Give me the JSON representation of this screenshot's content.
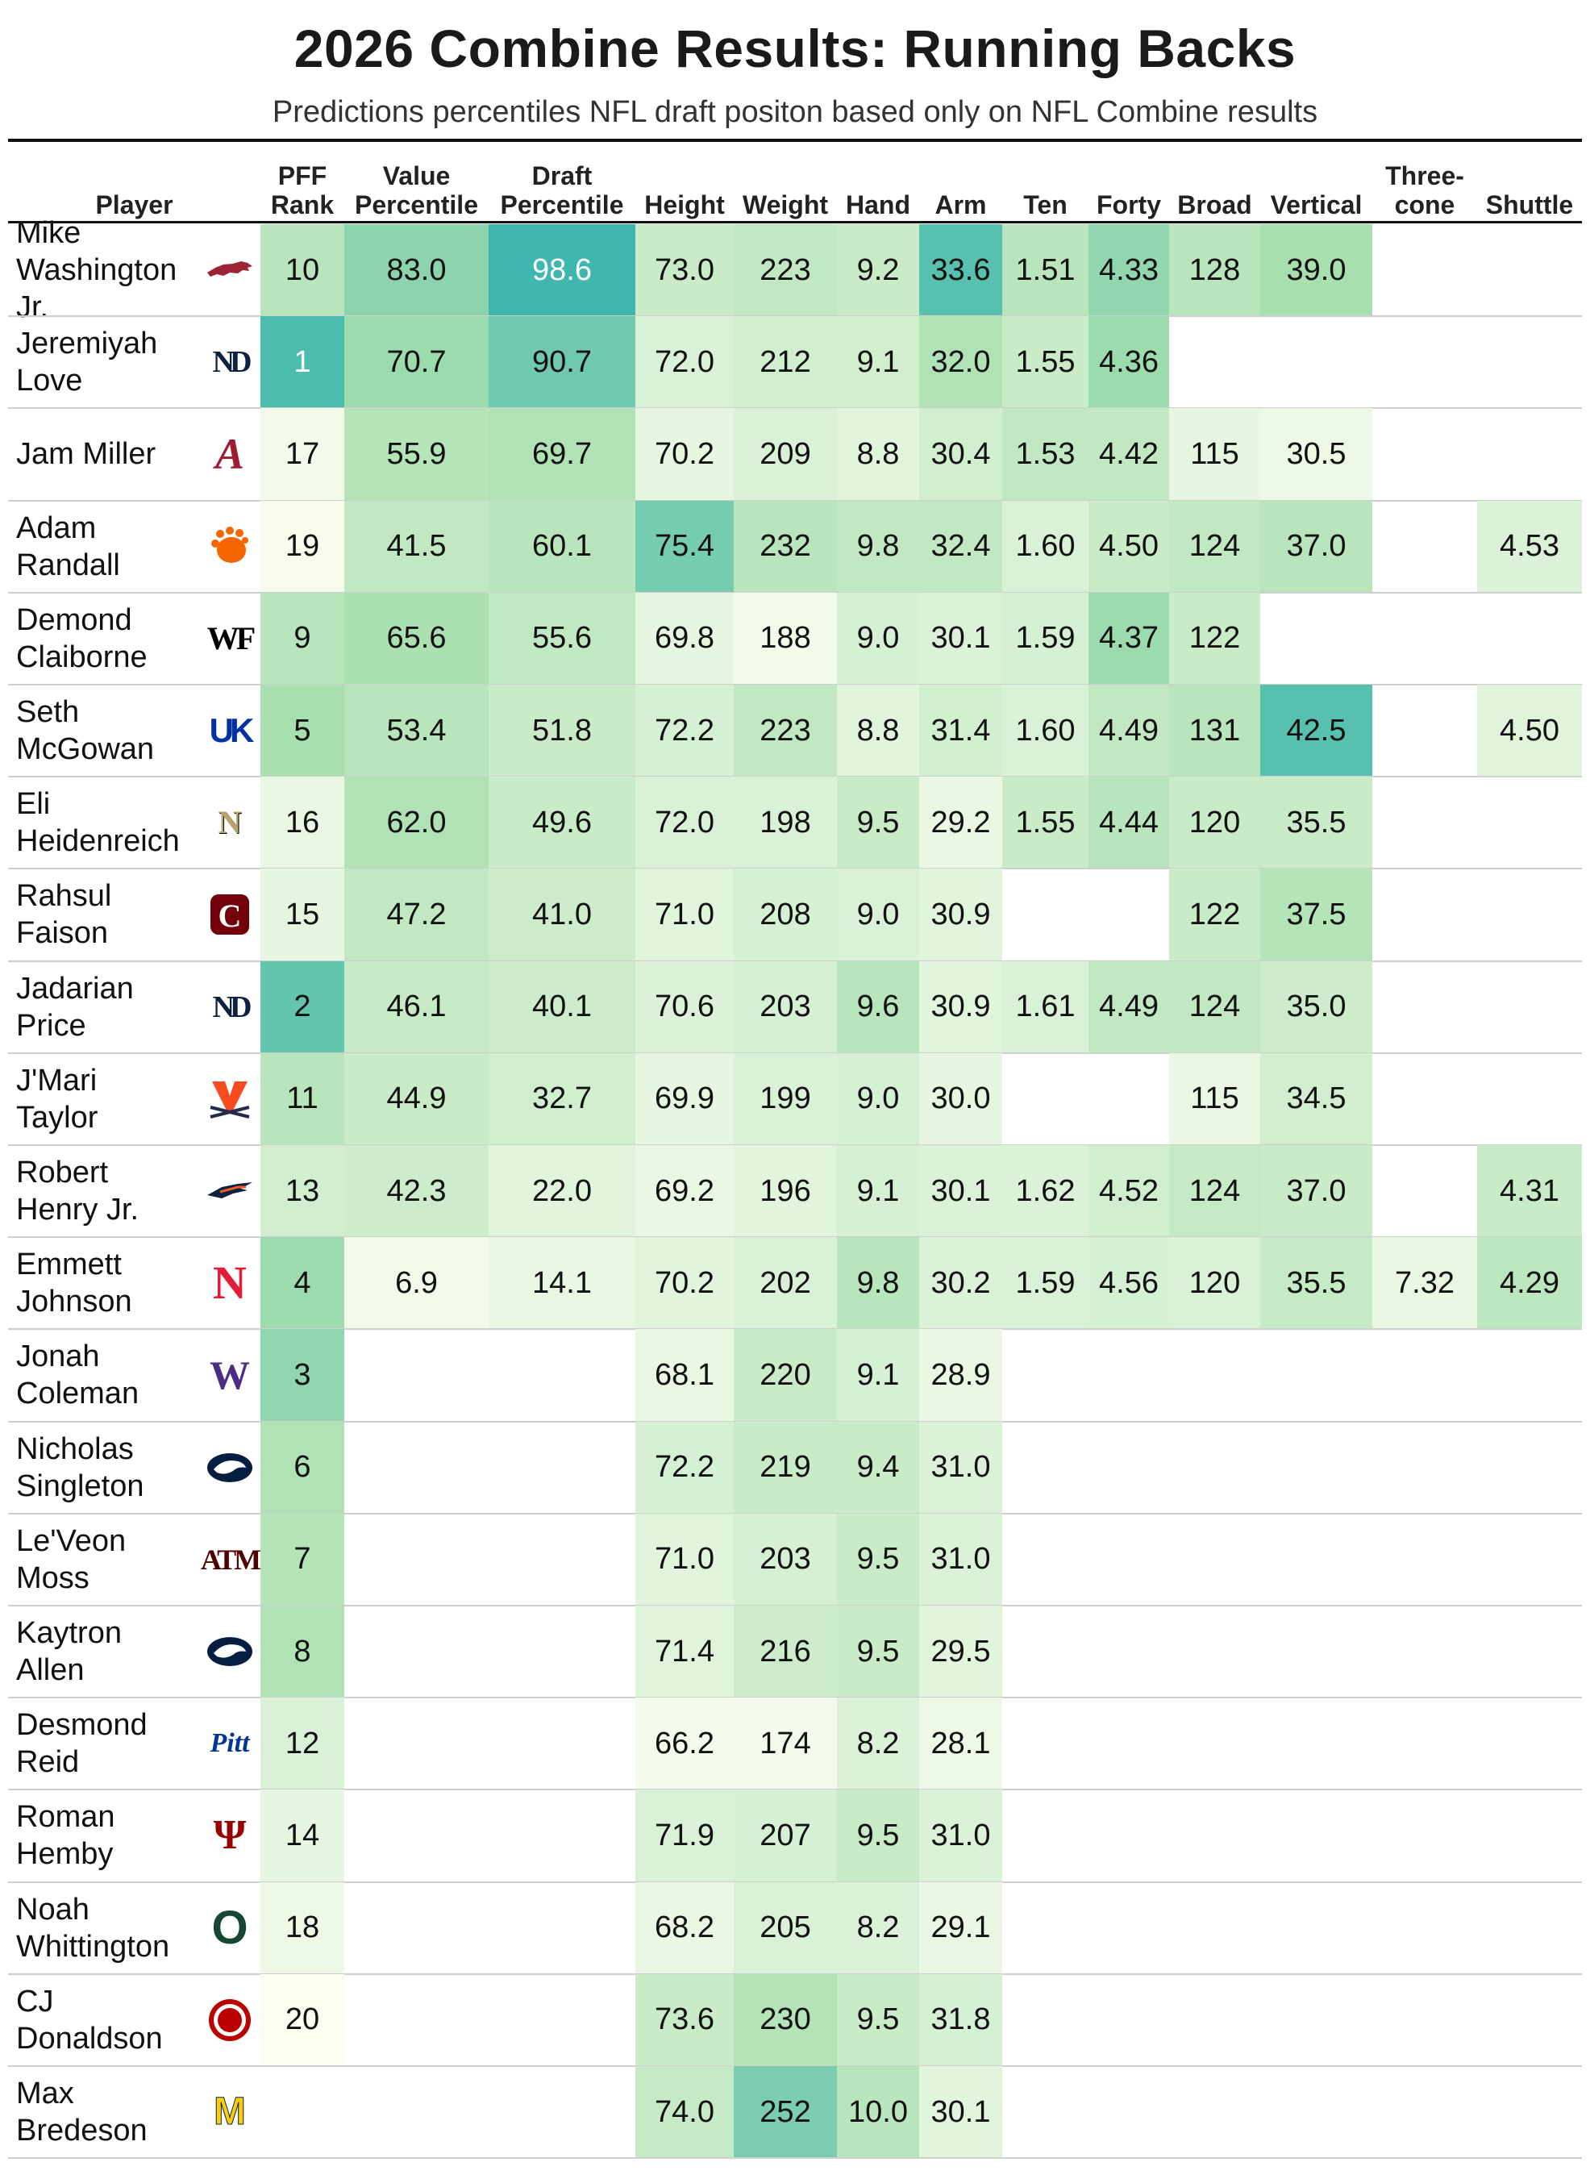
{
  "title": "2026 Combine Results: Running Backs",
  "subtitle": "Predictions percentiles NFL draft positon based only on NFL Combine results",
  "chart_data": {
    "type": "table",
    "title": "2026 Combine Results: Running Backs",
    "subtitle": "Predictions percentiles NFL draft positon based only on NFL Combine results",
    "columns": [
      {
        "key": "player",
        "label": "Player"
      },
      {
        "key": "pff_rank",
        "label": "PFF\nRank"
      },
      {
        "key": "value_pct",
        "label": "Value\nPercentile"
      },
      {
        "key": "draft_pct",
        "label": "Draft\nPercentile"
      },
      {
        "key": "height",
        "label": "Height"
      },
      {
        "key": "weight",
        "label": "Weight"
      },
      {
        "key": "hand",
        "label": "Hand"
      },
      {
        "key": "arm",
        "label": "Arm"
      },
      {
        "key": "ten",
        "label": "Ten"
      },
      {
        "key": "forty",
        "label": "Forty"
      },
      {
        "key": "broad",
        "label": "Broad"
      },
      {
        "key": "vertical",
        "label": "Vertical"
      },
      {
        "key": "three_cone",
        "label": "Three-\ncone"
      },
      {
        "key": "shuttle",
        "label": "Shuttle"
      }
    ],
    "rows": [
      {
        "player": "Mike\nWashington\nJr.",
        "logo": "arkansas-logo",
        "pff_rank": "10",
        "value_pct": "83.0",
        "draft_pct": "98.6",
        "height": "73.0",
        "weight": "223",
        "hand": "9.2",
        "arm": "33.6",
        "ten": "1.51",
        "forty": "4.33",
        "broad": "128",
        "vertical": "39.0",
        "three_cone": "",
        "shuttle": ""
      },
      {
        "player": "Jeremiyah\nLove",
        "logo": "notre-dame-logo",
        "pff_rank": "1",
        "value_pct": "70.7",
        "draft_pct": "90.7",
        "height": "72.0",
        "weight": "212",
        "hand": "9.1",
        "arm": "32.0",
        "ten": "1.55",
        "forty": "4.36",
        "broad": "",
        "vertical": "",
        "three_cone": "",
        "shuttle": ""
      },
      {
        "player": "Jam Miller",
        "logo": "alabama-logo",
        "pff_rank": "17",
        "value_pct": "55.9",
        "draft_pct": "69.7",
        "height": "70.2",
        "weight": "209",
        "hand": "8.8",
        "arm": "30.4",
        "ten": "1.53",
        "forty": "4.42",
        "broad": "115",
        "vertical": "30.5",
        "three_cone": "",
        "shuttle": ""
      },
      {
        "player": "Adam\nRandall",
        "logo": "clemson-logo",
        "pff_rank": "19",
        "value_pct": "41.5",
        "draft_pct": "60.1",
        "height": "75.4",
        "weight": "232",
        "hand": "9.8",
        "arm": "32.4",
        "ten": "1.60",
        "forty": "4.50",
        "broad": "124",
        "vertical": "37.0",
        "three_cone": "",
        "shuttle": "4.53"
      },
      {
        "player": "Demond\nClaiborne",
        "logo": "wake-forest-logo",
        "pff_rank": "9",
        "value_pct": "65.6",
        "draft_pct": "55.6",
        "height": "69.8",
        "weight": "188",
        "hand": "9.0",
        "arm": "30.1",
        "ten": "1.59",
        "forty": "4.37",
        "broad": "122",
        "vertical": "",
        "three_cone": "",
        "shuttle": ""
      },
      {
        "player": "Seth\nMcGowan",
        "logo": "kentucky-logo",
        "pff_rank": "5",
        "value_pct": "53.4",
        "draft_pct": "51.8",
        "height": "72.2",
        "weight": "223",
        "hand": "8.8",
        "arm": "31.4",
        "ten": "1.60",
        "forty": "4.49",
        "broad": "131",
        "vertical": "42.5",
        "three_cone": "",
        "shuttle": "4.50"
      },
      {
        "player": "Eli\nHeidenreich",
        "logo": "navy-logo",
        "pff_rank": "16",
        "value_pct": "62.0",
        "draft_pct": "49.6",
        "height": "72.0",
        "weight": "198",
        "hand": "9.5",
        "arm": "29.2",
        "ten": "1.55",
        "forty": "4.44",
        "broad": "120",
        "vertical": "35.5",
        "three_cone": "",
        "shuttle": ""
      },
      {
        "player": "Rahsul\nFaison",
        "logo": "south-carolina-logo",
        "pff_rank": "15",
        "value_pct": "47.2",
        "draft_pct": "41.0",
        "height": "71.0",
        "weight": "208",
        "hand": "9.0",
        "arm": "30.9",
        "ten": "",
        "forty": "",
        "broad": "122",
        "vertical": "37.5",
        "three_cone": "",
        "shuttle": ""
      },
      {
        "player": "Jadarian\nPrice",
        "logo": "notre-dame-logo",
        "pff_rank": "2",
        "value_pct": "46.1",
        "draft_pct": "40.1",
        "height": "70.6",
        "weight": "203",
        "hand": "9.6",
        "arm": "30.9",
        "ten": "1.61",
        "forty": "4.49",
        "broad": "124",
        "vertical": "35.0",
        "three_cone": "",
        "shuttle": ""
      },
      {
        "player": "J'Mari\nTaylor",
        "logo": "virginia-logo",
        "pff_rank": "11",
        "value_pct": "44.9",
        "draft_pct": "32.7",
        "height": "69.9",
        "weight": "199",
        "hand": "9.0",
        "arm": "30.0",
        "ten": "",
        "forty": "",
        "broad": "115",
        "vertical": "34.5",
        "three_cone": "",
        "shuttle": ""
      },
      {
        "player": "Robert\nHenry Jr.",
        "logo": "utsa-logo",
        "pff_rank": "13",
        "value_pct": "42.3",
        "draft_pct": "22.0",
        "height": "69.2",
        "weight": "196",
        "hand": "9.1",
        "arm": "30.1",
        "ten": "1.62",
        "forty": "4.52",
        "broad": "124",
        "vertical": "37.0",
        "three_cone": "",
        "shuttle": "4.31"
      },
      {
        "player": "Emmett\nJohnson",
        "logo": "nebraska-logo",
        "pff_rank": "4",
        "value_pct": "6.9",
        "draft_pct": "14.1",
        "height": "70.2",
        "weight": "202",
        "hand": "9.8",
        "arm": "30.2",
        "ten": "1.59",
        "forty": "4.56",
        "broad": "120",
        "vertical": "35.5",
        "three_cone": "7.32",
        "shuttle": "4.29"
      },
      {
        "player": "Jonah\nColeman",
        "logo": "washington-logo",
        "pff_rank": "3",
        "value_pct": "",
        "draft_pct": "",
        "height": "68.1",
        "weight": "220",
        "hand": "9.1",
        "arm": "28.9",
        "ten": "",
        "forty": "",
        "broad": "",
        "vertical": "",
        "three_cone": "",
        "shuttle": ""
      },
      {
        "player": "Nicholas\nSingleton",
        "logo": "penn-state-logo",
        "pff_rank": "6",
        "value_pct": "",
        "draft_pct": "",
        "height": "72.2",
        "weight": "219",
        "hand": "9.4",
        "arm": "31.0",
        "ten": "",
        "forty": "",
        "broad": "",
        "vertical": "",
        "three_cone": "",
        "shuttle": ""
      },
      {
        "player": "Le'Veon\nMoss",
        "logo": "texas-am-logo",
        "pff_rank": "7",
        "value_pct": "",
        "draft_pct": "",
        "height": "71.0",
        "weight": "203",
        "hand": "9.5",
        "arm": "31.0",
        "ten": "",
        "forty": "",
        "broad": "",
        "vertical": "",
        "three_cone": "",
        "shuttle": ""
      },
      {
        "player": "Kaytron\nAllen",
        "logo": "penn-state-logo",
        "pff_rank": "8",
        "value_pct": "",
        "draft_pct": "",
        "height": "71.4",
        "weight": "216",
        "hand": "9.5",
        "arm": "29.5",
        "ten": "",
        "forty": "",
        "broad": "",
        "vertical": "",
        "three_cone": "",
        "shuttle": ""
      },
      {
        "player": "Desmond\nReid",
        "logo": "pitt-logo",
        "pff_rank": "12",
        "value_pct": "",
        "draft_pct": "",
        "height": "66.2",
        "weight": "174",
        "hand": "8.2",
        "arm": "28.1",
        "ten": "",
        "forty": "",
        "broad": "",
        "vertical": "",
        "three_cone": "",
        "shuttle": ""
      },
      {
        "player": "Roman\nHemby",
        "logo": "indiana-logo",
        "pff_rank": "14",
        "value_pct": "",
        "draft_pct": "",
        "height": "71.9",
        "weight": "207",
        "hand": "9.5",
        "arm": "31.0",
        "ten": "",
        "forty": "",
        "broad": "",
        "vertical": "",
        "three_cone": "",
        "shuttle": ""
      },
      {
        "player": "Noah\nWhittington",
        "logo": "oregon-logo",
        "pff_rank": "18",
        "value_pct": "",
        "draft_pct": "",
        "height": "68.2",
        "weight": "205",
        "hand": "8.2",
        "arm": "29.1",
        "ten": "",
        "forty": "",
        "broad": "",
        "vertical": "",
        "three_cone": "",
        "shuttle": ""
      },
      {
        "player": "CJ\nDonaldson",
        "logo": "ohio-state-logo",
        "pff_rank": "20",
        "value_pct": "",
        "draft_pct": "",
        "height": "73.6",
        "weight": "230",
        "hand": "9.5",
        "arm": "31.8",
        "ten": "",
        "forty": "",
        "broad": "",
        "vertical": "",
        "three_cone": "",
        "shuttle": ""
      },
      {
        "player": "Max\nBredeson",
        "logo": "michigan-logo",
        "pff_rank": "",
        "value_pct": "",
        "draft_pct": "",
        "height": "74.0",
        "weight": "252",
        "hand": "10.0",
        "arm": "30.1",
        "ten": "",
        "forty": "",
        "broad": "",
        "vertical": "",
        "three_cone": "",
        "shuttle": ""
      }
    ],
    "color_scale": {
      "low": "#fafdf0",
      "mid": "#a8dfae",
      "high": "#34b3ae"
    },
    "heat": [
      [
        0.4,
        0.62,
        0.95,
        0.3,
        0.35,
        0.3,
        0.85,
        0.4,
        0.6,
        0.4,
        0.5,
        0,
        0
      ],
      [
        0.9,
        0.55,
        0.75,
        0.2,
        0.25,
        0.25,
        0.45,
        0.3,
        0.55,
        0,
        0,
        0,
        0
      ],
      [
        0.05,
        0.42,
        0.45,
        0.12,
        0.2,
        0.15,
        0.25,
        0.35,
        0.35,
        0.12,
        0.08,
        0,
        0
      ],
      [
        0.02,
        0.35,
        0.4,
        0.72,
        0.4,
        0.35,
        0.35,
        0.2,
        0.3,
        0.35,
        0.4,
        0,
        0.18
      ],
      [
        0.4,
        0.48,
        0.35,
        0.12,
        0.05,
        0.22,
        0.18,
        0.22,
        0.55,
        0.3,
        0,
        0,
        0
      ],
      [
        0.5,
        0.4,
        0.3,
        0.22,
        0.35,
        0.15,
        0.25,
        0.2,
        0.35,
        0.4,
        0.85,
        0,
        0.16
      ],
      [
        0.1,
        0.45,
        0.3,
        0.2,
        0.2,
        0.3,
        0.1,
        0.3,
        0.4,
        0.3,
        0.3,
        0,
        0
      ],
      [
        0.12,
        0.35,
        0.28,
        0.15,
        0.22,
        0.2,
        0.15,
        0,
        0,
        0.3,
        0.42,
        0,
        0
      ],
      [
        0.8,
        0.32,
        0.28,
        0.18,
        0.22,
        0.4,
        0.15,
        0.2,
        0.35,
        0.35,
        0.28,
        0,
        0
      ],
      [
        0.4,
        0.3,
        0.25,
        0.12,
        0.2,
        0.22,
        0.12,
        0,
        0,
        0.1,
        0.25,
        0,
        0
      ],
      [
        0.25,
        0.28,
        0.15,
        0.1,
        0.15,
        0.22,
        0.18,
        0.18,
        0.25,
        0.32,
        0.3,
        0,
        0.3
      ],
      [
        0.55,
        0.05,
        0.1,
        0.15,
        0.2,
        0.4,
        0.18,
        0.2,
        0.22,
        0.2,
        0.32,
        0.1,
        0.38
      ],
      [
        0.6,
        0,
        0,
        0.1,
        0.3,
        0.22,
        0.1,
        0,
        0,
        0,
        0,
        0,
        0
      ],
      [
        0.45,
        0,
        0,
        0.22,
        0.3,
        0.3,
        0.18,
        0,
        0,
        0,
        0,
        0,
        0
      ],
      [
        0.42,
        0,
        0,
        0.15,
        0.22,
        0.3,
        0.18,
        0,
        0,
        0,
        0,
        0,
        0
      ],
      [
        0.45,
        0,
        0,
        0.16,
        0.28,
        0.3,
        0.15,
        0,
        0,
        0,
        0,
        0,
        0
      ],
      [
        0.2,
        0,
        0,
        0.04,
        0.03,
        0.18,
        0.08,
        0,
        0,
        0,
        0,
        0,
        0
      ],
      [
        0.12,
        0,
        0,
        0.2,
        0.22,
        0.3,
        0.18,
        0,
        0,
        0,
        0,
        0,
        0
      ],
      [
        0.08,
        0,
        0,
        0.1,
        0.2,
        0.18,
        0.1,
        0,
        0,
        0,
        0,
        0,
        0
      ],
      [
        0,
        0,
        0,
        0.3,
        0.42,
        0.3,
        0.22,
        0,
        0,
        0,
        0,
        0,
        0
      ],
      [
        0,
        0,
        0,
        0.32,
        0.7,
        0.4,
        0.15,
        0,
        0,
        0,
        0,
        0,
        0
      ]
    ]
  }
}
